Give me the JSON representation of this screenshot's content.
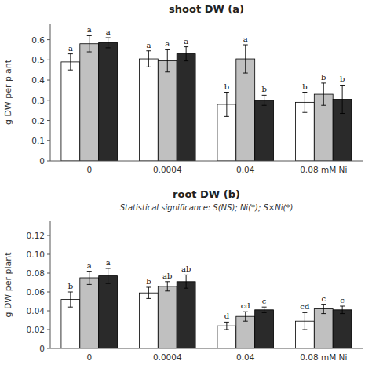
{
  "chart_data": [
    {
      "type": "bar",
      "title": "shoot DW (a)",
      "y_label": "g DW per plant",
      "categories": [
        "0",
        "0.0004",
        "0.04",
        "0.08 mM Ni"
      ],
      "series": [
        {
          "color": "#ffffff",
          "values": [
            0.49,
            0.505,
            0.28,
            0.29
          ],
          "errors": [
            0.04,
            0.04,
            0.06,
            0.05
          ],
          "labels": [
            "a",
            "a",
            "b",
            "b"
          ]
        },
        {
          "color": "#c0c0c0",
          "values": [
            0.58,
            0.495,
            0.505,
            0.33
          ],
          "errors": [
            0.04,
            0.055,
            0.07,
            0.055
          ],
          "labels": [
            "a",
            "a",
            "a",
            "b"
          ]
        },
        {
          "color": "#2a2a2a",
          "values": [
            0.585,
            0.53,
            0.3,
            0.305
          ],
          "errors": [
            0.025,
            0.035,
            0.025,
            0.07
          ],
          "labels": [
            "a",
            "a",
            "b",
            "b"
          ]
        }
      ],
      "ylim": [
        0,
        0.68
      ],
      "yticks": [
        0,
        0.1,
        0.2,
        0.3,
        0.4,
        0.5,
        0.6
      ],
      "grid": false
    },
    {
      "type": "bar",
      "title": "root DW (b)",
      "subtitle": "Statistical significance: S(NS); Ni(*); S×Ni(*)",
      "y_label": "g DW per plant",
      "categories": [
        "0",
        "0.0004",
        "0.04",
        "0.08 mM Ni"
      ],
      "series": [
        {
          "color": "#ffffff",
          "values": [
            0.052,
            0.059,
            0.024,
            0.029
          ],
          "errors": [
            0.008,
            0.006,
            0.004,
            0.009
          ],
          "labels": [
            "b",
            "b",
            "d",
            "cd"
          ]
        },
        {
          "color": "#c0c0c0",
          "values": [
            0.075,
            0.066,
            0.034,
            0.042
          ],
          "errors": [
            0.007,
            0.005,
            0.005,
            0.005
          ],
          "labels": [
            "a",
            "ab",
            "cd",
            "c"
          ]
        },
        {
          "color": "#2a2a2a",
          "values": [
            0.077,
            0.071,
            0.041,
            0.041
          ],
          "errors": [
            0.008,
            0.007,
            0.003,
            0.004
          ],
          "labels": [
            "a",
            "ab",
            "c",
            "c"
          ]
        }
      ],
      "ylim": [
        0,
        0.135
      ],
      "yticks": [
        0,
        0.02,
        0.04,
        0.06,
        0.08,
        {
          "value": 0.1,
          "label": "0.10"
        },
        0.12
      ],
      "grid": false
    }
  ]
}
